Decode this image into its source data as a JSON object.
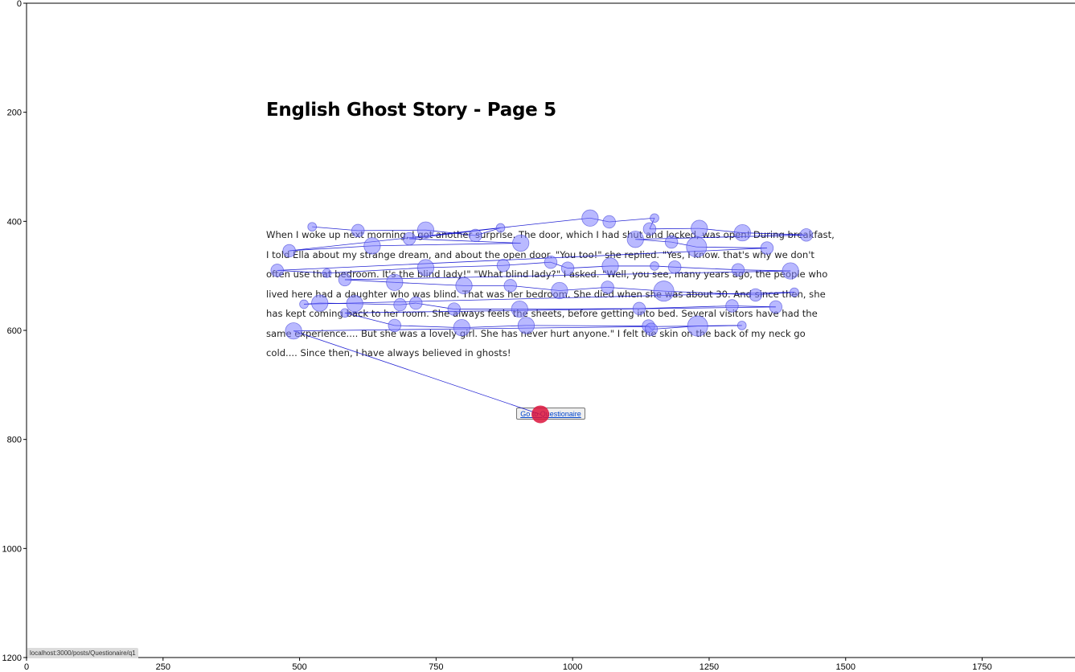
{
  "page": {
    "title": "English Ghost Story - Page 5",
    "story": "When I woke up next morning, I got another surprise. The door, which I had shut and locked, was open! During breakfast, I told Ella about my strange dream, and about the open door. \"You too!\" she replied. \"Yes, I know. that's why we don't often use that bedroom. It's the blind lady!\" \"What blind lady?\" I asked. \"Well, you see, many years ago, the people who lived here had a daughter who was blind. That was her bedroom. She died when she was about 30. And since then, she has kept coming back to her room. She always feels the sheets, before getting into bed. Several visitors have had the same experience.... But she was a lovely girl. She has never hurt anyone.\" I felt the skin on the back of my neck go cold.... Since then, I have always believed in ghosts!",
    "button_label": "Go to Questionaire",
    "status_url": "localhost:3000/posts/Questionaire/q1"
  },
  "chart_data": {
    "type": "scatter",
    "title": "",
    "xlabel": "",
    "ylabel": "",
    "xlim": [
      0,
      1920
    ],
    "ylim": [
      1200,
      0
    ],
    "x_ticks": [
      0,
      250,
      500,
      750,
      1000,
      1250,
      1500,
      1750
    ],
    "y_ticks": [
      0,
      200,
      400,
      600,
      800,
      1000,
      1200
    ],
    "grid": false,
    "fixation_color": "#8080ff",
    "path_color": "#0000cc",
    "final_fixation_color": "#dc143c",
    "fixations": [
      {
        "x": 523,
        "y": 410,
        "size": 1
      },
      {
        "x": 607,
        "y": 417,
        "size": 2
      },
      {
        "x": 731,
        "y": 416,
        "size": 3
      },
      {
        "x": 822,
        "y": 426,
        "size": 2
      },
      {
        "x": 868,
        "y": 412,
        "size": 1
      },
      {
        "x": 701,
        "y": 432,
        "size": 2
      },
      {
        "x": 905,
        "y": 440,
        "size": 3
      },
      {
        "x": 633,
        "y": 445,
        "size": 3
      },
      {
        "x": 481,
        "y": 454,
        "size": 2
      },
      {
        "x": 1032,
        "y": 394,
        "size": 3
      },
      {
        "x": 1067,
        "y": 401,
        "size": 2
      },
      {
        "x": 1150,
        "y": 394,
        "size": 1
      },
      {
        "x": 1141,
        "y": 414,
        "size": 2
      },
      {
        "x": 1232,
        "y": 413,
        "size": 3
      },
      {
        "x": 1311,
        "y": 421,
        "size": 3
      },
      {
        "x": 1428,
        "y": 425,
        "size": 2
      },
      {
        "x": 1115,
        "y": 433,
        "size": 3
      },
      {
        "x": 1181,
        "y": 438,
        "size": 2
      },
      {
        "x": 1227,
        "y": 447,
        "size": 4
      },
      {
        "x": 1356,
        "y": 449,
        "size": 2
      },
      {
        "x": 459,
        "y": 490,
        "size": 2
      },
      {
        "x": 550,
        "y": 495,
        "size": 1
      },
      {
        "x": 731,
        "y": 485,
        "size": 3
      },
      {
        "x": 873,
        "y": 481,
        "size": 2
      },
      {
        "x": 960,
        "y": 475,
        "size": 2
      },
      {
        "x": 991,
        "y": 486,
        "size": 2
      },
      {
        "x": 1069,
        "y": 482,
        "size": 3
      },
      {
        "x": 1150,
        "y": 482,
        "size": 1
      },
      {
        "x": 1187,
        "y": 484,
        "size": 2
      },
      {
        "x": 1303,
        "y": 489,
        "size": 2
      },
      {
        "x": 1399,
        "y": 491,
        "size": 3
      },
      {
        "x": 583,
        "y": 507,
        "size": 2
      },
      {
        "x": 674,
        "y": 512,
        "size": 3
      },
      {
        "x": 801,
        "y": 518,
        "size": 3
      },
      {
        "x": 886,
        "y": 518,
        "size": 2
      },
      {
        "x": 976,
        "y": 527,
        "size": 3
      },
      {
        "x": 1064,
        "y": 521,
        "size": 2
      },
      {
        "x": 1167,
        "y": 528,
        "size": 4
      },
      {
        "x": 1335,
        "y": 535,
        "size": 2
      },
      {
        "x": 1406,
        "y": 530,
        "size": 1
      },
      {
        "x": 508,
        "y": 552,
        "size": 1
      },
      {
        "x": 537,
        "y": 550,
        "size": 3
      },
      {
        "x": 601,
        "y": 551,
        "size": 3
      },
      {
        "x": 684,
        "y": 553,
        "size": 2
      },
      {
        "x": 713,
        "y": 550,
        "size": 2
      },
      {
        "x": 783,
        "y": 561,
        "size": 2
      },
      {
        "x": 903,
        "y": 561,
        "size": 3
      },
      {
        "x": 1122,
        "y": 560,
        "size": 2
      },
      {
        "x": 1292,
        "y": 555,
        "size": 2
      },
      {
        "x": 1372,
        "y": 557,
        "size": 2
      },
      {
        "x": 583,
        "y": 568,
        "size": 1
      },
      {
        "x": 674,
        "y": 591,
        "size": 2
      },
      {
        "x": 797,
        "y": 595,
        "size": 3
      },
      {
        "x": 915,
        "y": 591,
        "size": 3
      },
      {
        "x": 1139,
        "y": 592,
        "size": 2
      },
      {
        "x": 1144,
        "y": 598,
        "size": 2
      },
      {
        "x": 1229,
        "y": 592,
        "size": 4
      },
      {
        "x": 1310,
        "y": 591,
        "size": 1
      },
      {
        "x": 489,
        "y": 601,
        "size": 3
      },
      {
        "x": 941,
        "y": 754,
        "size": 5,
        "final": true
      }
    ]
  }
}
